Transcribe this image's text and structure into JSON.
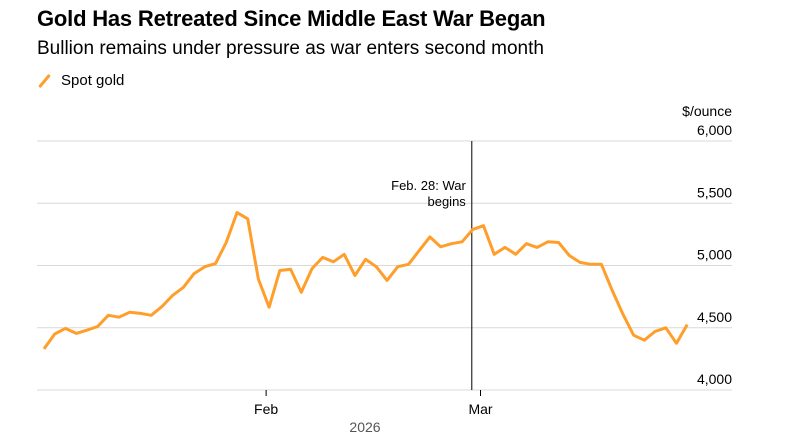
{
  "header": {
    "title": "Gold Has Retreated Since Middle East War Began",
    "subtitle": "Bullion remains under pressure as war enters second month"
  },
  "chart_data": {
    "type": "line",
    "title": "Gold Has Retreated Since Middle East War Began",
    "subtitle": "Bullion remains under pressure as war enters second month",
    "ylabel": "$/ounce",
    "xlabel": "2026",
    "ylim": [
      4000,
      6000
    ],
    "yticks": [
      4000,
      4500,
      5000,
      5500,
      6000
    ],
    "ytick_labels": [
      "4,000",
      "4,500",
      "5,000",
      "5,500",
      "6,000"
    ],
    "xticks": [
      {
        "date": "2026-02-02",
        "label": "Feb"
      },
      {
        "date": "2026-03-02",
        "label": "Mar"
      }
    ],
    "year_label": "2026",
    "grid": true,
    "legend_position": "top-left",
    "colors": {
      "series": "#ff9e2a",
      "grid": "#d9d9d9",
      "annotation": "#000000"
    },
    "annotation": {
      "date": "2026-02-28",
      "label_line1": "Feb. 28: War",
      "label_line2": "begins"
    },
    "series": [
      {
        "name": "Spot gold",
        "x": [
          "2026-01-02",
          "2026-01-05",
          "2026-01-06",
          "2026-01-07",
          "2026-01-08",
          "2026-01-09",
          "2026-01-12",
          "2026-01-13",
          "2026-01-14",
          "2026-01-15",
          "2026-01-16",
          "2026-01-19",
          "2026-01-20",
          "2026-01-21",
          "2026-01-22",
          "2026-01-23",
          "2026-01-26",
          "2026-01-27",
          "2026-01-28",
          "2026-01-29",
          "2026-01-30",
          "2026-02-02",
          "2026-02-03",
          "2026-02-04",
          "2026-02-05",
          "2026-02-06",
          "2026-02-09",
          "2026-02-10",
          "2026-02-11",
          "2026-02-12",
          "2026-02-13",
          "2026-02-16",
          "2026-02-17",
          "2026-02-18",
          "2026-02-19",
          "2026-02-20",
          "2026-02-23",
          "2026-02-24",
          "2026-02-25",
          "2026-02-26",
          "2026-02-27",
          "2026-03-02",
          "2026-03-03",
          "2026-03-04",
          "2026-03-05",
          "2026-03-06",
          "2026-03-09",
          "2026-03-10",
          "2026-03-11",
          "2026-03-12",
          "2026-03-13",
          "2026-03-16",
          "2026-03-17",
          "2026-03-18",
          "2026-03-19",
          "2026-03-20",
          "2026-03-23",
          "2026-03-24",
          "2026-03-25",
          "2026-03-26",
          "2026-03-27"
        ],
        "values": [
          4330,
          4450,
          4495,
          4455,
          4480,
          4510,
          4600,
          4585,
          4625,
          4615,
          4600,
          4670,
          4760,
          4825,
          4935,
          4990,
          5015,
          5185,
          5425,
          5375,
          4890,
          4665,
          4960,
          4970,
          4785,
          4975,
          5065,
          5030,
          5090,
          4920,
          5050,
          4990,
          4880,
          4990,
          5010,
          5120,
          5230,
          5150,
          5175,
          5190,
          5290,
          5320,
          5090,
          5145,
          5090,
          5175,
          5145,
          5190,
          5185,
          5080,
          5025,
          5010,
          5010,
          4800,
          4610,
          4440,
          4400,
          4470,
          4500,
          4375,
          4525
        ]
      }
    ]
  }
}
